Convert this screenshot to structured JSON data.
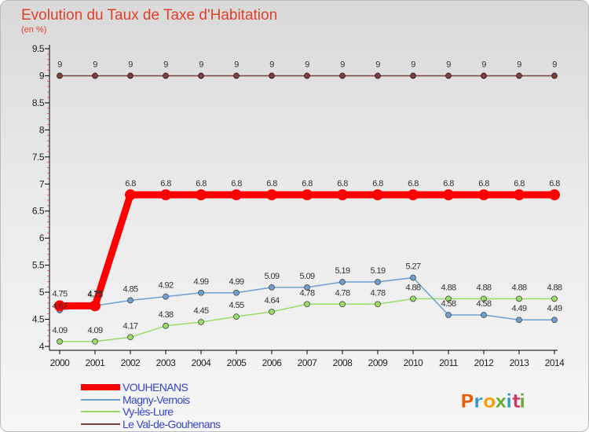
{
  "chart_data": {
    "type": "line",
    "title": "Evolution du Taux de Taxe d'Habitation",
    "subtitle": "(en %)",
    "xlabel": "",
    "ylabel": "",
    "categories": [
      "2000",
      "2001",
      "2002",
      "2003",
      "2004",
      "2005",
      "2006",
      "2007",
      "2008",
      "2009",
      "2010",
      "2011",
      "2012",
      "2013",
      "2014"
    ],
    "ylim": [
      4,
      9.5
    ],
    "yticks": [
      "4",
      "4.5",
      "5",
      "5.5",
      "6",
      "6.5",
      "7",
      "7.5",
      "8",
      "8.5",
      "9",
      "9.5"
    ],
    "series": [
      {
        "name": "VOUHENANS",
        "color": "#ff0000",
        "values": [
          4.75,
          4.75,
          6.8,
          6.8,
          6.8,
          6.8,
          6.8,
          6.8,
          6.8,
          6.8,
          6.8,
          6.8,
          6.8,
          6.8,
          6.8
        ],
        "labels": [
          "4.75",
          "4.75",
          "6.8",
          "6.8",
          "6.8",
          "6.8",
          "6.8",
          "6.8",
          "6.8",
          "6.8",
          "6.8",
          "6.8",
          "6.8",
          "6.8",
          "6.8"
        ]
      },
      {
        "name": "Magny-Vernois",
        "color": "#6f9fd0",
        "values": [
          4.67,
          4.75,
          4.85,
          4.92,
          4.99,
          4.99,
          5.09,
          5.09,
          5.19,
          5.19,
          5.27,
          4.58,
          4.58,
          4.49,
          4.49
        ],
        "labels": [
          "4.67",
          "4.75",
          "4.85",
          "4.92",
          "4.99",
          "4.99",
          "5.09",
          "5.09",
          "5.19",
          "5.19",
          "5.27",
          "4.58",
          "4.58",
          "4.49",
          "4.49"
        ]
      },
      {
        "name": "Vy-lès-Lure",
        "color": "#99dd66",
        "values": [
          4.09,
          4.09,
          4.17,
          4.38,
          4.45,
          4.55,
          4.64,
          4.78,
          4.78,
          4.78,
          4.88,
          4.88,
          4.88,
          4.88,
          4.88
        ],
        "labels": [
          "4.09",
          "4.09",
          "4.17",
          "4.38",
          "4.45",
          "4.55",
          "4.64",
          "4.78",
          "4.78",
          "4.78",
          "4.88",
          "4.88",
          "4.88",
          "4.88",
          "4.88"
        ]
      },
      {
        "name": "Le Val-de-Gouhenans",
        "color": "#7a4040",
        "values": [
          9,
          9,
          9,
          9,
          9,
          9,
          9,
          9,
          9,
          9,
          9,
          9,
          9,
          9,
          9
        ],
        "labels": [
          "9",
          "9",
          "9",
          "9",
          "9",
          "9",
          "9",
          "9",
          "9",
          "9",
          "9",
          "9",
          "9",
          "9",
          "9"
        ]
      }
    ],
    "legend": "bottom-left",
    "grid": false
  },
  "brand": {
    "text": "Proxiti",
    "colors": [
      "#e65c00",
      "#3399cc",
      "#ff9900",
      "#66aa33",
      "#3399cc",
      "#cc3366",
      "#66aa33"
    ]
  }
}
